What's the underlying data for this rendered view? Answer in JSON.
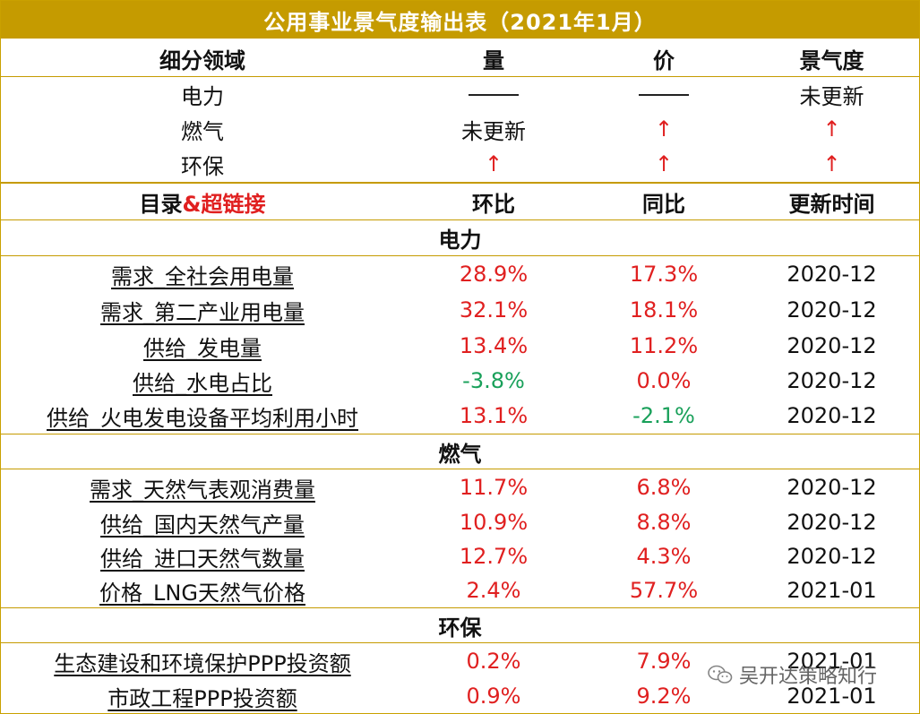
{
  "title": "公用事业景气度输出表（2021年1月）",
  "summary_header": {
    "field": "细分领域",
    "volume": "量",
    "price": "价",
    "prosperity": "景气度"
  },
  "summary_rows": [
    {
      "field": "电力",
      "volume": "——",
      "price": "——",
      "prosperity": "未更新"
    },
    {
      "field": "燃气",
      "volume": "未更新",
      "price": "↑",
      "prosperity": "↑"
    },
    {
      "field": "环保",
      "volume": "↑",
      "price": "↑",
      "prosperity": "↑"
    }
  ],
  "detail_header": {
    "catalog": "目录",
    "catalog_amp": "&超链接",
    "mom": "环比",
    "yoy": "同比",
    "update_time": "更新时间"
  },
  "sections": [
    {
      "name": "电力",
      "rows": [
        {
          "name": "需求_全社会用电量",
          "mom": "28.9%",
          "yoy": "17.3%",
          "time": "2020-12"
        },
        {
          "name": "需求_第二产业用电量",
          "mom": "32.1%",
          "yoy": "18.1%",
          "time": "2020-12"
        },
        {
          "name": "供给_发电量",
          "mom": "13.4%",
          "yoy": "11.2%",
          "time": "2020-12"
        },
        {
          "name": "供给_水电占比",
          "mom": "-3.8%",
          "yoy": "0.0%",
          "time": "2020-12"
        },
        {
          "name": "供给_火电发电设备平均利用小时",
          "mom": "13.1%",
          "yoy": "-2.1%",
          "time": "2020-12"
        }
      ]
    },
    {
      "name": "燃气",
      "rows": [
        {
          "name": "需求_天然气表观消费量",
          "mom": "11.7%",
          "yoy": "6.8%",
          "time": "2020-12"
        },
        {
          "name": "供给_国内天然气产量",
          "mom": "10.9%",
          "yoy": "8.8%",
          "time": "2020-12"
        },
        {
          "name": "供给_进口天然气数量",
          "mom": "12.7%",
          "yoy": "4.3%",
          "time": "2020-12"
        },
        {
          "name": "价格_LNG天然气价格",
          "mom": "2.4%",
          "yoy": "57.7%",
          "time": "2021-01"
        }
      ]
    },
    {
      "name": "环保",
      "rows": [
        {
          "name": "生态建设和环境保护PPP投资额",
          "mom": "0.2%",
          "yoy": "7.9%",
          "time": "2021-01"
        },
        {
          "name": "市政工程PPP投资额",
          "mom": "0.9%",
          "yoy": "9.2%",
          "time": "2021-01"
        }
      ]
    }
  ],
  "watermark": "吴开达策略知行",
  "colors": {
    "gold": "#c59b00",
    "up_red": "#e02020",
    "down_green": "#19a05a"
  }
}
